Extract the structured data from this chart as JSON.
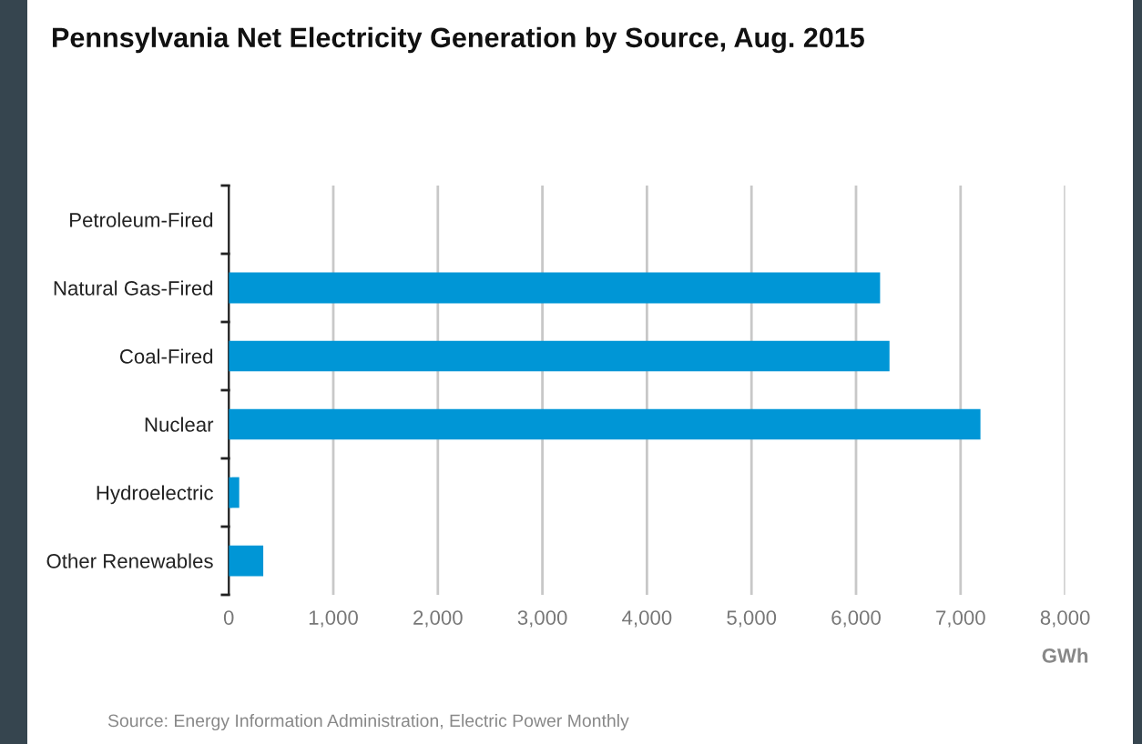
{
  "chart_data": {
    "type": "bar",
    "orientation": "horizontal",
    "title": "Pennsylvania Net Electricity Generation by Source, Aug. 2015",
    "categories": [
      "Petroleum-Fired",
      "Natural Gas-Fired",
      "Coal-Fired",
      "Nuclear",
      "Hydroelectric",
      "Other Renewables"
    ],
    "values": [
      0,
      6230,
      6320,
      7190,
      100,
      330
    ],
    "color": "#0096d6",
    "xlabel": "GWh",
    "xlim": [
      0,
      8000
    ],
    "xticks": [
      {
        "value": 0,
        "label": "0"
      },
      {
        "value": 1000,
        "label": "1,000"
      },
      {
        "value": 2000,
        "label": "2,000"
      },
      {
        "value": 3000,
        "label": "3,000"
      },
      {
        "value": 4000,
        "label": "4,000"
      },
      {
        "value": 5000,
        "label": "5,000"
      },
      {
        "value": 6000,
        "label": "6,000"
      },
      {
        "value": 7000,
        "label": "7,000"
      },
      {
        "value": 8000,
        "label": "8,000"
      }
    ],
    "grid": "x",
    "annotations": [
      "Source: Energy Information Administration, Electric Power Monthly"
    ]
  }
}
